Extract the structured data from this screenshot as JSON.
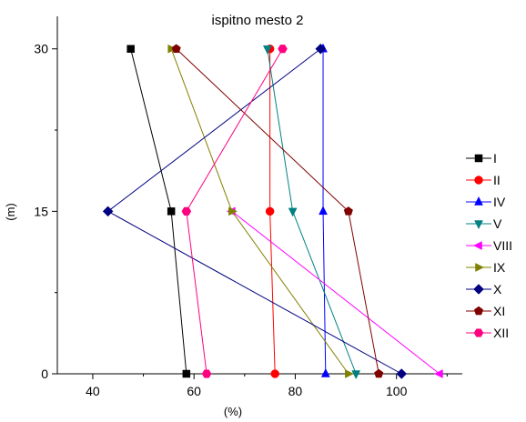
{
  "chart_data": {
    "type": "line",
    "title": "ispitno mesto 2",
    "xlabel": "(%)",
    "ylabel": "(m)",
    "xlim": [
      33,
      113
    ],
    "ylim": [
      0,
      33
    ],
    "xticks": [
      40,
      60,
      80,
      100
    ],
    "yticks": [
      0,
      15,
      30
    ],
    "grid": false,
    "legend_position": "right",
    "series": [
      {
        "name": "I",
        "color": "#000000",
        "marker": "square",
        "x": [
          47.5,
          55.5,
          58.5
        ],
        "y": [
          30,
          15,
          0
        ]
      },
      {
        "name": "II",
        "color": "#ff0000",
        "marker": "circle",
        "x": [
          75,
          75,
          76
        ],
        "y": [
          30,
          15,
          0
        ]
      },
      {
        "name": "IV",
        "color": "#0000ff",
        "marker": "triangle-up",
        "x": [
          85.5,
          85.5,
          86
        ],
        "y": [
          30,
          15,
          0
        ]
      },
      {
        "name": "V",
        "color": "#008080",
        "marker": "triangle-down",
        "x": [
          74.5,
          79.5,
          92
        ],
        "y": [
          30,
          15,
          0
        ]
      },
      {
        "name": "VIII",
        "color": "#ff00ff",
        "marker": "triangle-left",
        "x": [
          67.5,
          108.5
        ],
        "y": [
          15,
          0
        ]
      },
      {
        "name": "IX",
        "color": "#808000",
        "marker": "triangle-right",
        "x": [
          55.5,
          67.5,
          90.5
        ],
        "y": [
          30,
          15,
          0
        ]
      },
      {
        "name": "X",
        "color": "#000080",
        "marker": "diamond",
        "x": [
          85,
          43,
          101
        ],
        "y": [
          30,
          15,
          0
        ]
      },
      {
        "name": "XI",
        "color": "#800000",
        "marker": "pentagon",
        "x": [
          56.5,
          90.5,
          96.5
        ],
        "y": [
          30,
          15,
          0
        ]
      },
      {
        "name": "XII",
        "color": "#ff0080",
        "marker": "hexagon",
        "x": [
          77.5,
          58.5,
          62.5
        ],
        "y": [
          30,
          15,
          0
        ]
      }
    ]
  }
}
